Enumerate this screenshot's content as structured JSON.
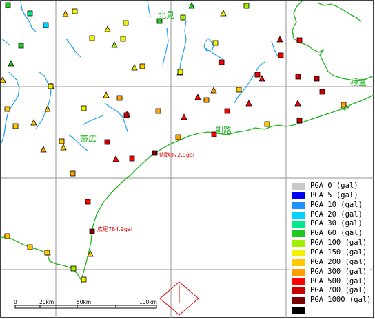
{
  "places": {
    "kitami": "北見",
    "nemuro": "根室",
    "kushiro": "釧路",
    "obihiro": "帯広"
  },
  "annotations": {
    "kushiro_offshore": "釧路972.9gal",
    "hiroo": "広尾784.9gal"
  },
  "scale": {
    "labels": [
      "0",
      "20km",
      "50km",
      "100km"
    ]
  },
  "legend": [
    {
      "label": "PGA 0 (gal)",
      "color": "#c8c8c8"
    },
    {
      "label": "PGA 5 (gal)",
      "color": "#0000ff"
    },
    {
      "label": "PGA 10 (gal)",
      "color": "#1e90ff"
    },
    {
      "label": "PGA 20 (gal)",
      "color": "#00d2ff"
    },
    {
      "label": "PGA 30 (gal)",
      "color": "#00e68c"
    },
    {
      "label": "PGA 60 (gal)",
      "color": "#1ec81e"
    },
    {
      "label": "PGA 100 (gal)",
      "color": "#a0f000"
    },
    {
      "label": "PGA 150 (gal)",
      "color": "#f0f000"
    },
    {
      "label": "PGA 200 (gal)",
      "color": "#ffc800"
    },
    {
      "label": "PGA 300 (gal)",
      "color": "#ffa000"
    },
    {
      "label": "PGA 500 (gal)",
      "color": "#ff0000"
    },
    {
      "label": "PGA 700 (gal)",
      "color": "#c80000"
    },
    {
      "label": "PGA 1000 (gal)",
      "color": "#780000"
    },
    {
      "label": "",
      "color": "#000000"
    }
  ],
  "colors": {
    "grid": "#969696",
    "river": "#1ea0f0",
    "coast": "#1eb41e",
    "label": "#1eb41e",
    "annotation": "#dc0000"
  }
}
